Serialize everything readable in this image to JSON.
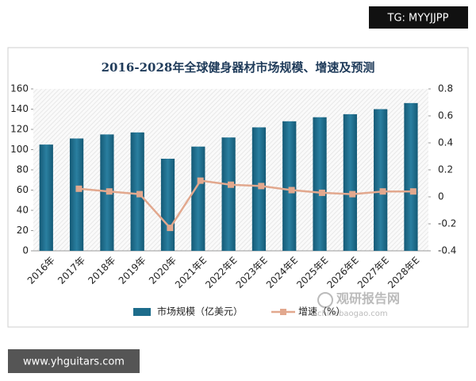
{
  "chart_data": {
    "type": "bar-line",
    "title": "2016-2028年全球健身器材市场规模、增速及预测",
    "categories": [
      "2016年",
      "2017年",
      "2018年",
      "2019年",
      "2020年",
      "2021年E",
      "2022年E",
      "2023年E",
      "2024年E",
      "2025年E",
      "2026年E",
      "2027年E",
      "2028年E"
    ],
    "series": [
      {
        "name": "市场规模（亿美元）",
        "type": "bar",
        "color": "#1d6c8b",
        "values": [
          105,
          111,
          115,
          117,
          91,
          103,
          112,
          122,
          128,
          132,
          135,
          140,
          146
        ]
      },
      {
        "name": "增速（%）",
        "type": "line",
        "axis": "y2",
        "color": "#e2a88e",
        "values": [
          null,
          0.06,
          0.04,
          0.02,
          -0.23,
          0.12,
          0.09,
          0.08,
          0.05,
          0.03,
          0.02,
          0.04,
          0.04
        ]
      }
    ],
    "ylim": [
      0,
      160
    ],
    "yticks": [
      0,
      20,
      40,
      60,
      80,
      100,
      120,
      140,
      160
    ],
    "y2lim": [
      -0.4,
      0.8
    ],
    "y2ticks": [
      -0.4,
      -0.2,
      0,
      0.2,
      0.4,
      0.6,
      0.8
    ],
    "legend": "bottom"
  },
  "overlays": {
    "top_tag": "TG: MYYJJPP",
    "bottom_tag": "www.yhguitars.com",
    "logo_name": "观研报告网",
    "logo_url": "chinabaogao.com"
  }
}
